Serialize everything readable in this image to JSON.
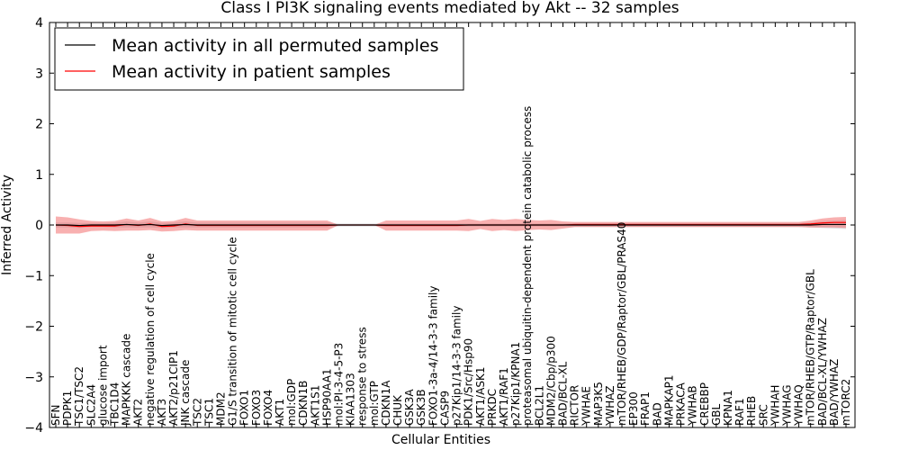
{
  "chart_data": {
    "type": "line",
    "title": "Class I PI3K signaling events mediated by Akt -- 32 samples",
    "xlabel": "Cellular Entities",
    "ylabel": "Inferred Activity",
    "ylim": [
      -4,
      4
    ],
    "yticks": [
      "4",
      "3",
      "2",
      "1",
      "0",
      "−1",
      "−2",
      "−3",
      "−4"
    ],
    "grid": false,
    "legend": {
      "position": "top-left",
      "entries": [
        {
          "name": "Mean activity in all permuted samples",
          "color": "#000000"
        },
        {
          "name": "Mean activity in patient samples",
          "color": "#ff0000"
        }
      ]
    },
    "categories": [
      "SFN",
      "PDPK1",
      "TSC1/TSC2",
      "SLC2A4",
      "glucose import",
      "TBC1D4",
      "MAPKKK cascade",
      "AKT2",
      "negative regulation of cell cycle",
      "AKT3",
      "AKT2/p21CIP1",
      "JNK cascade",
      "TSC2",
      "TSC1",
      "MDM2",
      "G1/S transition of mitotic cell cycle",
      "FOXO1",
      "FOXO3",
      "FOXO4",
      "AKT1",
      "mol:GDP",
      "CDKN1B",
      "AKT1S1",
      "HSP90AA1",
      "mol:PI-3-4-5-P3",
      "KIAA1303",
      "response to stress",
      "mol:GTP",
      "CDKN1A",
      "CHUK",
      "GSK3A",
      "GSK3B",
      "FOXO1-3a-4/14-3-3 family",
      "CASP9",
      "p27Kip1/14-3-3 family",
      "PDK1/Src/Hsp90",
      "AKT1/ASK1",
      "PRKDC",
      "AKT1/RAF1",
      "p27Kip1/KPNA1",
      "proteasomal ubiquitin-dependent protein catabolic process",
      "BCL2L1",
      "MDM2/Cbp/p300",
      "BAD/BCL-XL",
      "RICTOR",
      "YWHAE",
      "MAP3K5",
      "YWHAZ",
      "mTOR/RHEB/GDP/Raptor/GBL/PRAS40",
      "EP300",
      "FRAP1",
      "BAD",
      "MAPKAP1",
      "PRKACA",
      "YWHAB",
      "CREBBP",
      "GBL",
      "KPNA1",
      "RAF1",
      "RHEB",
      "SRC",
      "YWHAH",
      "YWHAG",
      "YWHAQ",
      "mTOR/RHEB/GTP/Raptor/GBL",
      "BAD/BCL-XL/YWHAZ",
      "BAD/YWHAZ",
      "mTORC2"
    ],
    "series": [
      {
        "name": "Mean activity in all permuted samples",
        "color": "#000000",
        "values": [
          0.0,
          0.0,
          -0.01,
          0.0,
          0.0,
          0.0,
          0.01,
          0.0,
          0.01,
          -0.01,
          0.0,
          0.01,
          0.0,
          0.0,
          0.0,
          0.0,
          0.0,
          0.0,
          0.0,
          0.0,
          0.0,
          0.0,
          0.0,
          0.0,
          0.0,
          0.0,
          0.0,
          0.0,
          0.0,
          0.0,
          0.0,
          0.0,
          0.0,
          0.0,
          0.0,
          0.0,
          0.0,
          0.0,
          0.0,
          0.0,
          0.0,
          0.0,
          0.0,
          0.0,
          0.0,
          0.0,
          0.0,
          0.0,
          0.0,
          0.0,
          0.0,
          0.0,
          0.0,
          0.0,
          0.0,
          0.0,
          0.0,
          0.0,
          0.0,
          0.0,
          0.0,
          0.0,
          0.0,
          0.0,
          0.0,
          0.01,
          0.01,
          0.01
        ],
        "band": [
          0.05,
          0.05,
          0.05,
          0.04,
          0.04,
          0.05,
          0.06,
          0.05,
          0.06,
          0.05,
          0.05,
          0.06,
          0.05,
          0.05,
          0.05,
          0.05,
          0.05,
          0.05,
          0.05,
          0.05,
          0.05,
          0.05,
          0.05,
          0.05,
          0.03,
          0.03,
          0.03,
          0.03,
          0.03,
          0.03,
          0.03,
          0.03,
          0.03,
          0.03,
          0.03,
          0.03,
          0.03,
          0.03,
          0.03,
          0.03,
          0.03,
          0.03,
          0.03,
          0.03,
          0.04,
          0.04,
          0.04,
          0.04,
          0.04,
          0.04,
          0.04,
          0.04,
          0.04,
          0.04,
          0.04,
          0.04,
          0.04,
          0.04,
          0.04,
          0.04,
          0.04,
          0.04,
          0.04,
          0.04,
          0.05,
          0.07,
          0.08,
          0.09
        ]
      },
      {
        "name": "Mean activity in patient samples",
        "color": "#ff0000",
        "values": [
          0.0,
          -0.01,
          -0.03,
          -0.02,
          -0.02,
          -0.02,
          0.01,
          -0.01,
          0.02,
          -0.03,
          -0.02,
          0.02,
          -0.01,
          -0.01,
          -0.01,
          -0.01,
          -0.01,
          -0.01,
          -0.01,
          -0.01,
          -0.01,
          -0.01,
          -0.01,
          -0.01,
          0.0,
          0.0,
          0.0,
          0.0,
          -0.01,
          -0.01,
          -0.01,
          -0.01,
          -0.01,
          -0.01,
          -0.01,
          0.0,
          0.0,
          0.0,
          0.0,
          0.0,
          0.0,
          0.0,
          0.0,
          0.0,
          0.01,
          0.01,
          0.01,
          0.01,
          0.01,
          0.01,
          0.01,
          0.01,
          0.01,
          0.01,
          0.01,
          0.01,
          0.01,
          0.01,
          0.01,
          0.01,
          0.01,
          0.01,
          0.01,
          0.01,
          0.02,
          0.04,
          0.05,
          0.05
        ],
        "band": [
          0.17,
          0.16,
          0.14,
          0.1,
          0.09,
          0.1,
          0.12,
          0.1,
          0.12,
          0.1,
          0.1,
          0.12,
          0.1,
          0.1,
          0.1,
          0.1,
          0.1,
          0.1,
          0.1,
          0.1,
          0.1,
          0.1,
          0.1,
          0.1,
          0.0,
          0.0,
          0.0,
          0.0,
          0.1,
          0.1,
          0.1,
          0.1,
          0.1,
          0.1,
          0.1,
          0.12,
          0.08,
          0.12,
          0.1,
          0.12,
          0.1,
          0.09,
          0.1,
          0.07,
          0.05,
          0.05,
          0.05,
          0.05,
          0.05,
          0.05,
          0.05,
          0.05,
          0.05,
          0.05,
          0.05,
          0.05,
          0.05,
          0.05,
          0.05,
          0.05,
          0.05,
          0.05,
          0.05,
          0.05,
          0.07,
          0.09,
          0.1,
          0.11
        ]
      }
    ]
  }
}
